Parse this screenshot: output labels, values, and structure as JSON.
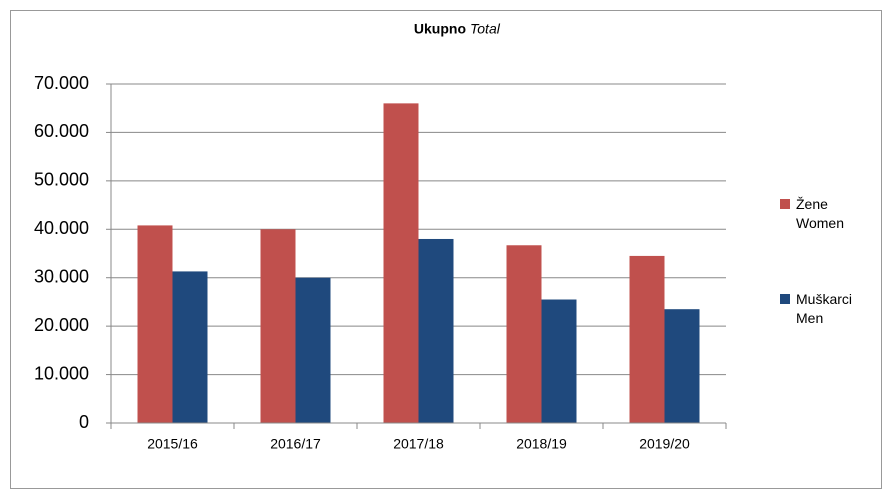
{
  "chart_data": {
    "type": "bar",
    "title": "Ukupno",
    "subtitle": "Total",
    "categories": [
      "2015/16",
      "2016/17",
      "2017/18",
      "2018/19",
      "2019/20"
    ],
    "series": [
      {
        "name": "Žene Women",
        "color": "#c0504d",
        "values": [
          40800,
          40000,
          66000,
          36700,
          34500
        ]
      },
      {
        "name": "Muškarci Men",
        "color": "#1f497d",
        "values": [
          31300,
          30000,
          38000,
          25500,
          23500
        ]
      }
    ],
    "ylim": [
      0,
      70000
    ],
    "yticks": [
      0,
      {
        "value": 10000,
        "label": "10.000"
      },
      {
        "value": 20000,
        "label": "20.000"
      },
      {
        "value": 30000,
        "label": "30.000"
      },
      {
        "value": 40000,
        "label": "40.000"
      },
      {
        "value": 50000,
        "label": "50.000"
      },
      {
        "value": 60000,
        "label": "60.000"
      },
      {
        "value": 70000,
        "label": "70.000"
      }
    ],
    "grid": true,
    "legend": "right"
  }
}
